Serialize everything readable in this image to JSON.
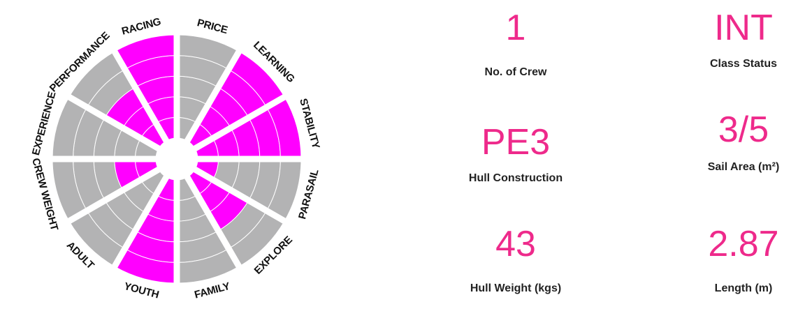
{
  "colors": {
    "accent": "#ee2a8b",
    "filled": "#ff00ff",
    "empty": "#b3b3b4",
    "ring": "#ffffff"
  },
  "chart_data": {
    "type": "radial-bar",
    "scale_max": 5,
    "categories": [
      "PRICE",
      "LEARNING",
      "STABILITY",
      "PARASAIL",
      "EXPLORE",
      "FAMILY",
      "YOUTH",
      "ADULT",
      "CREW WEIGHT",
      "EXPERIENCE",
      "PERFORMANCE",
      "RACING"
    ],
    "values": [
      0,
      5,
      5,
      1,
      3,
      0,
      5,
      0,
      2,
      0,
      3,
      5
    ]
  },
  "specs": [
    {
      "value": "1",
      "label": "No. of Crew"
    },
    {
      "value": "INT",
      "label": "Class Status"
    },
    {
      "value": "PE3",
      "label": "Hull Construction"
    },
    {
      "value": "3/5",
      "label": "Sail Area (m²)"
    },
    {
      "value": "43",
      "label": "Hull Weight (kgs)"
    },
    {
      "value": "2.87",
      "label": "Length (m)"
    }
  ]
}
